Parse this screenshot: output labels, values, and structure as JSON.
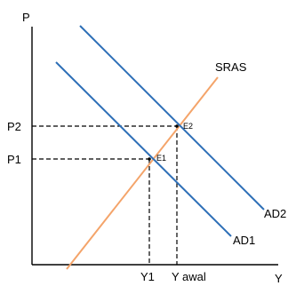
{
  "axes": {
    "y_label": "P",
    "x_label": "Y"
  },
  "price_levels": {
    "p1": "P1",
    "p2": "P2"
  },
  "output_levels": {
    "y1": "Y1",
    "y_awal": "Y awal"
  },
  "curves": {
    "sras": "SRAS",
    "ad1": "AD1",
    "ad2": "AD2"
  },
  "equilibria": {
    "e1": "E1",
    "e2": "E2"
  },
  "colors": {
    "aggregate_demand": "#2e6fb7",
    "short_run_supply": "#f4a46a",
    "axis": "#000000",
    "guide": "#000000"
  }
}
